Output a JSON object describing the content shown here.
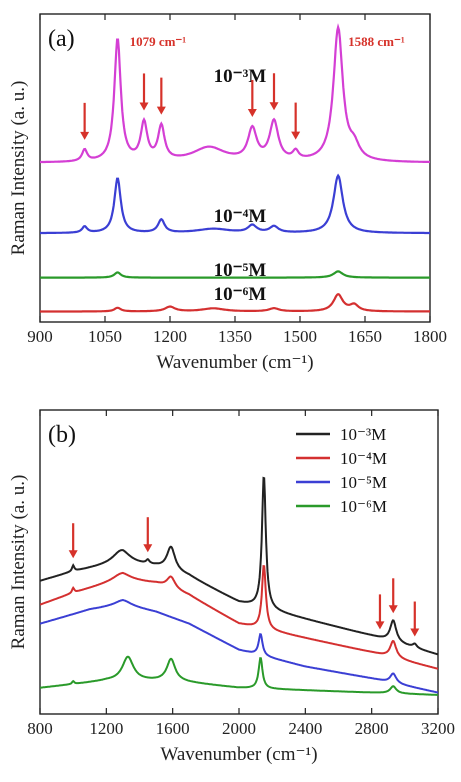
{
  "chart_data": [
    {
      "id": "a",
      "type": "line",
      "panel_label": "(a)",
      "xlabel": "Wavenumber (cm⁻¹)",
      "ylabel": "Raman Intensity (a. u.)",
      "xlim": [
        900,
        1800
      ],
      "xticks": [
        900,
        1050,
        1200,
        1350,
        1500,
        1650,
        1800
      ],
      "grid": false,
      "y_ticks_labeled": false,
      "series": [
        {
          "label": "10⁻³M",
          "color": "#d43fd4",
          "offset": 3.05,
          "peaks": [
            [
              1003,
              0.22,
              7
            ],
            [
              1079,
              2.35,
              9
            ],
            [
              1140,
              0.72,
              9
            ],
            [
              1180,
              0.65,
              9
            ],
            [
              1290,
              0.28,
              45
            ],
            [
              1390,
              0.6,
              12
            ],
            [
              1440,
              0.75,
              12
            ],
            [
              1490,
              0.16,
              8
            ],
            [
              1588,
              2.55,
              13
            ],
            [
              1625,
              0.25,
              14
            ]
          ]
        },
        {
          "label": "10⁻⁴M",
          "color": "#3b3fd4",
          "offset": 1.7,
          "peaks": [
            [
              1003,
              0.12,
              7
            ],
            [
              1079,
              1.05,
              9
            ],
            [
              1180,
              0.25,
              9
            ],
            [
              1300,
              0.08,
              45
            ],
            [
              1390,
              0.14,
              12
            ],
            [
              1440,
              0.12,
              12
            ],
            [
              1588,
              1.1,
              13
            ]
          ]
        },
        {
          "label": "10⁻⁵M",
          "color": "#2a9a2a",
          "offset": 0.85,
          "peaks": [
            [
              1079,
              0.1,
              9
            ],
            [
              1588,
              0.12,
              13
            ]
          ]
        },
        {
          "label": "10⁻⁶M",
          "color": "#d43030",
          "offset": 0.2,
          "peaks": [
            [
              1079,
              0.07,
              9
            ],
            [
              1200,
              0.09,
              14
            ],
            [
              1300,
              0.06,
              30
            ],
            [
              1440,
              0.06,
              14
            ],
            [
              1588,
              0.32,
              13
            ],
            [
              1625,
              0.12,
              12
            ]
          ]
        }
      ],
      "annotations": [
        {
          "text": "1079 cm⁻¹",
          "x": 1079
        },
        {
          "text": "1588 cm⁻¹",
          "x": 1588
        }
      ],
      "arrows_x": [
        1003,
        1140,
        1180,
        1390,
        1440,
        1490
      ]
    },
    {
      "id": "b",
      "type": "line",
      "panel_label": "(b)",
      "xlabel": "Wavenumber (cm⁻¹)",
      "ylabel": "Raman Intensity (a. u.)",
      "xlim": [
        800,
        3200
      ],
      "xticks": [
        800,
        1200,
        1600,
        2000,
        2400,
        2800,
        3200
      ],
      "grid": false,
      "legend": "top-right",
      "y_ticks_labeled": false,
      "series": [
        {
          "name": "10⁻³M",
          "color": "#222222",
          "base": [
            [
              800,
              2.8
            ],
            [
              1000,
              3.0
            ],
            [
              1300,
              3.2
            ],
            [
              1500,
              3.1
            ],
            [
              1700,
              2.9
            ],
            [
              2000,
              2.35
            ],
            [
              2400,
              2.0
            ],
            [
              2800,
              1.65
            ],
            [
              3200,
              1.25
            ]
          ],
          "peaks": [
            [
              1000,
              0.12,
              8
            ],
            [
              1290,
              0.25,
              60
            ],
            [
              1450,
              0.08,
              12
            ],
            [
              1590,
              0.5,
              30
            ],
            [
              2150,
              2.8,
              14
            ],
            [
              2930,
              0.45,
              22
            ],
            [
              3060,
              0.08,
              15
            ]
          ]
        },
        {
          "name": "10⁻⁴M",
          "color": "#d43030",
          "base": [
            [
              800,
              2.3
            ],
            [
              1000,
              2.55
            ],
            [
              1300,
              2.85
            ],
            [
              1500,
              2.75
            ],
            [
              1700,
              2.5
            ],
            [
              2000,
              1.9
            ],
            [
              2400,
              1.6
            ],
            [
              2800,
              1.3
            ],
            [
              3200,
              0.95
            ]
          ],
          "peaks": [
            [
              1000,
              0.1,
              8
            ],
            [
              1290,
              0.12,
              60
            ],
            [
              1590,
              0.25,
              30
            ],
            [
              2150,
              1.35,
              14
            ],
            [
              2930,
              0.35,
              22
            ]
          ]
        },
        {
          "name": "10⁻⁵M",
          "color": "#3b3fd4",
          "base": [
            [
              800,
              1.9
            ],
            [
              1100,
              2.2
            ],
            [
              1300,
              2.3
            ],
            [
              1500,
              2.15
            ],
            [
              1700,
              1.9
            ],
            [
              2000,
              1.35
            ],
            [
              2400,
              1.0
            ],
            [
              2800,
              0.75
            ],
            [
              3200,
              0.45
            ]
          ],
          "peaks": [
            [
              1300,
              0.1,
              60
            ],
            [
              2130,
              0.45,
              14
            ],
            [
              2930,
              0.2,
              22
            ]
          ]
        },
        {
          "name": "10⁻⁶M",
          "color": "#2a9a2a",
          "base": [
            [
              800,
              0.55
            ],
            [
              1200,
              0.7
            ],
            [
              1600,
              0.7
            ],
            [
              2000,
              0.55
            ],
            [
              2400,
              0.5
            ],
            [
              2800,
              0.45
            ],
            [
              3200,
              0.4
            ]
          ],
          "peaks": [
            [
              1000,
              0.06,
              8
            ],
            [
              1330,
              0.5,
              40
            ],
            [
              1590,
              0.45,
              30
            ],
            [
              2130,
              0.65,
              14
            ],
            [
              2930,
              0.15,
              22
            ]
          ]
        }
      ],
      "arrows_x": [
        1000,
        1450,
        2850,
        2930,
        3060
      ]
    }
  ]
}
